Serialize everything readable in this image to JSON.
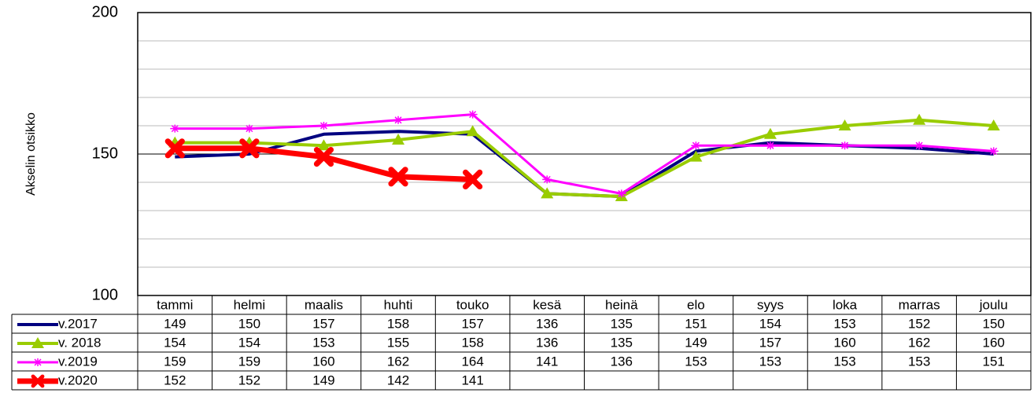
{
  "chart_data": {
    "type": "line",
    "y_axis_label": "Akselin otsikko",
    "categories": [
      "tammi",
      "helmi",
      "maalis",
      "huhti",
      "touko",
      "kesä",
      "heinä",
      "elo",
      "syys",
      "loka",
      "marras",
      "joulu"
    ],
    "series": [
      {
        "name": "v.2017",
        "color": "#000080",
        "marker": "none",
        "values": [
          149,
          150,
          157,
          158,
          157,
          136,
          135,
          151,
          154,
          153,
          152,
          150
        ]
      },
      {
        "name": "v. 2018",
        "color": "#99cc00",
        "marker": "triangle",
        "values": [
          154,
          154,
          153,
          155,
          158,
          136,
          135,
          149,
          157,
          160,
          162,
          160
        ]
      },
      {
        "name": "v.2019",
        "color": "#ff00ff",
        "marker": "star",
        "values": [
          159,
          159,
          160,
          162,
          164,
          141,
          136,
          153,
          153,
          153,
          153,
          151
        ]
      },
      {
        "name": "v.2020",
        "color": "#ff0000",
        "marker": "x",
        "values": [
          152,
          152,
          149,
          142,
          141,
          null,
          null,
          null,
          null,
          null,
          null,
          null
        ]
      }
    ],
    "ylim": [
      100,
      200
    ],
    "yticks": [
      100,
      150,
      200
    ],
    "minor_yticks": [
      110,
      120,
      130,
      140,
      160,
      170,
      180,
      190
    ],
    "grid": true,
    "data_table": true
  }
}
